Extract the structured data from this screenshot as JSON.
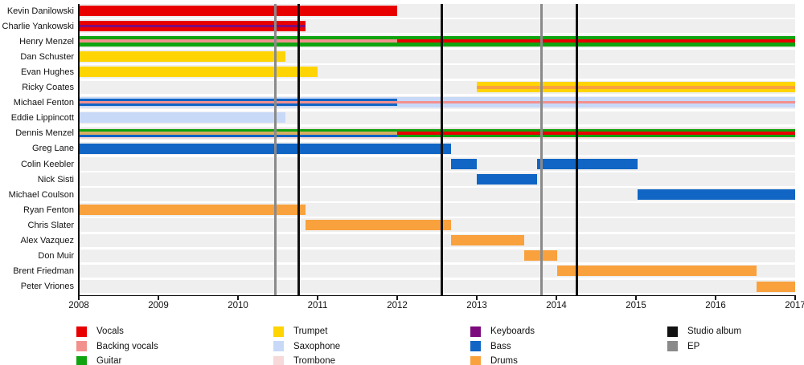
{
  "chart_data": {
    "type": "timeline",
    "description": "Band members timeline (gantt-style) with instrument color coding and release markers",
    "x_axis": {
      "start": 2008,
      "end": 2017,
      "tick_labels": [
        "2008",
        "2009",
        "2010",
        "2011",
        "2012",
        "2013",
        "2014",
        "2015",
        "2016",
        "2017"
      ]
    },
    "colors": {
      "vocals": "#e80000",
      "backing_vocals": "#f2908e",
      "guitar": "#10a310",
      "trumpet": "#ffd403",
      "saxophone": "#c8d9f8",
      "trombone": "#f6d9d8",
      "keyboards": "#7d0b7d",
      "bass": "#1065c5",
      "drums": "#f9a13d",
      "drums_muted": "#d9ae63",
      "studio_album": "#111111",
      "ep": "#8a8a8a"
    },
    "members": [
      {
        "name": "Kevin Danilowski",
        "segments": [
          {
            "start": 2008.0,
            "end": 2012.0,
            "layers": [
              {
                "k": "vocals",
                "w": 1
              }
            ]
          }
        ]
      },
      {
        "name": "Charlie Yankowski",
        "segments": [
          {
            "start": 2008.0,
            "end": 2010.85,
            "layers": [
              {
                "k": "vocals",
                "w": 0.36
              },
              {
                "k": "keyboards",
                "w": 0.28
              },
              {
                "k": "vocals",
                "w": 0.36
              }
            ]
          }
        ]
      },
      {
        "name": "Henry Menzel",
        "segments": [
          {
            "start": 2008.0,
            "end": 2012.0,
            "layers": [
              {
                "k": "guitar",
                "w": 0.35
              },
              {
                "k": "backing_vocals",
                "w": 0.3
              },
              {
                "k": "guitar",
                "w": 0.35
              }
            ]
          },
          {
            "start": 2012.0,
            "end": 2017.0,
            "layers": [
              {
                "k": "guitar",
                "w": 0.35
              },
              {
                "k": "vocals",
                "w": 0.3
              },
              {
                "k": "guitar",
                "w": 0.35
              }
            ]
          }
        ]
      },
      {
        "name": "Dan Schuster",
        "segments": [
          {
            "start": 2008.0,
            "end": 2010.6,
            "layers": [
              {
                "k": "trumpet",
                "w": 1
              }
            ]
          }
        ]
      },
      {
        "name": "Evan Hughes",
        "segments": [
          {
            "start": 2008.0,
            "end": 2011.0,
            "layers": [
              {
                "k": "trumpet",
                "w": 1
              }
            ]
          }
        ]
      },
      {
        "name": "Ricky Coates",
        "segments": [
          {
            "start": 2013.0,
            "end": 2017.0,
            "layers": [
              {
                "k": "trumpet",
                "w": 0.34
              },
              {
                "k": "drums",
                "w": 0.32
              },
              {
                "k": "trumpet",
                "w": 0.34
              }
            ]
          }
        ]
      },
      {
        "name": "Michael Fenton",
        "segments": [
          {
            "start": 2008.0,
            "end": 2012.0,
            "layers": [
              {
                "k": "saxophone",
                "w": 0.16
              },
              {
                "k": "bass",
                "w": 0.22
              },
              {
                "k": "backing_vocals",
                "w": 0.24
              },
              {
                "k": "bass",
                "w": 0.22
              },
              {
                "k": "saxophone",
                "w": 0.16
              }
            ]
          },
          {
            "start": 2012.0,
            "end": 2017.0,
            "layers": [
              {
                "k": "saxophone",
                "w": 0.38
              },
              {
                "k": "backing_vocals",
                "w": 0.24
              },
              {
                "k": "saxophone",
                "w": 0.38
              }
            ]
          }
        ]
      },
      {
        "name": "Eddie Lippincott",
        "segments": [
          {
            "start": 2008.0,
            "end": 2010.6,
            "layers": [
              {
                "k": "saxophone",
                "w": 1
              }
            ]
          }
        ]
      },
      {
        "name": "Dennis Menzel",
        "segments": [
          {
            "start": 2008.0,
            "end": 2012.0,
            "layers": [
              {
                "k": "trombone",
                "w": 0.12
              },
              {
                "k": "guitar",
                "w": 0.24
              },
              {
                "k": "drums_muted",
                "w": 0.26
              },
              {
                "k": "bass",
                "w": 0.24
              },
              {
                "k": "trombone",
                "w": 0.14
              }
            ]
          },
          {
            "start": 2012.0,
            "end": 2017.0,
            "layers": [
              {
                "k": "trombone",
                "w": 0.12
              },
              {
                "k": "guitar",
                "w": 0.26
              },
              {
                "k": "vocals",
                "w": 0.24
              },
              {
                "k": "guitar",
                "w": 0.26
              },
              {
                "k": "trombone",
                "w": 0.12
              }
            ]
          }
        ]
      },
      {
        "name": "Greg Lane",
        "segments": [
          {
            "start": 2008.0,
            "end": 2012.68,
            "layers": [
              {
                "k": "bass",
                "w": 1
              }
            ]
          }
        ]
      },
      {
        "name": "Colin Keebler",
        "segments": [
          {
            "start": 2012.68,
            "end": 2013.0,
            "layers": [
              {
                "k": "bass",
                "w": 1
              }
            ]
          },
          {
            "start": 2013.76,
            "end": 2015.02,
            "layers": [
              {
                "k": "bass",
                "w": 1
              }
            ]
          }
        ]
      },
      {
        "name": "Nick Sisti",
        "segments": [
          {
            "start": 2013.0,
            "end": 2013.76,
            "layers": [
              {
                "k": "bass",
                "w": 1
              }
            ]
          }
        ]
      },
      {
        "name": "Michael Coulson",
        "segments": [
          {
            "start": 2015.02,
            "end": 2017.0,
            "layers": [
              {
                "k": "bass",
                "w": 1
              }
            ]
          }
        ]
      },
      {
        "name": "Ryan Fenton",
        "segments": [
          {
            "start": 2008.0,
            "end": 2010.85,
            "layers": [
              {
                "k": "drums",
                "w": 1
              }
            ]
          }
        ]
      },
      {
        "name": "Chris Slater",
        "segments": [
          {
            "start": 2010.85,
            "end": 2012.68,
            "layers": [
              {
                "k": "drums",
                "w": 1
              }
            ]
          }
        ]
      },
      {
        "name": "Alex Vazquez",
        "segments": [
          {
            "start": 2012.68,
            "end": 2013.6,
            "layers": [
              {
                "k": "drums",
                "w": 1
              }
            ]
          }
        ]
      },
      {
        "name": "Don Muir",
        "segments": [
          {
            "start": 2013.6,
            "end": 2014.01,
            "layers": [
              {
                "k": "drums",
                "w": 1
              }
            ]
          }
        ]
      },
      {
        "name": "Brent Friedman",
        "segments": [
          {
            "start": 2014.01,
            "end": 2016.52,
            "layers": [
              {
                "k": "drums",
                "w": 1
              }
            ]
          }
        ]
      },
      {
        "name": "Peter Vriones",
        "segments": [
          {
            "start": 2016.52,
            "end": 2017.0,
            "layers": [
              {
                "k": "drums",
                "w": 1
              }
            ]
          }
        ]
      }
    ],
    "releases": [
      {
        "type": "ep",
        "year": 2010.47
      },
      {
        "type": "studio_album",
        "year": 2010.76
      },
      {
        "type": "studio_album",
        "year": 2012.56
      },
      {
        "type": "ep",
        "year": 2013.81
      },
      {
        "type": "studio_album",
        "year": 2014.26
      }
    ],
    "legend": {
      "columns": [
        [
          {
            "label": "Vocals",
            "k": "vocals"
          },
          {
            "label": "Backing vocals",
            "k": "backing_vocals"
          },
          {
            "label": "Guitar",
            "k": "guitar"
          }
        ],
        [
          {
            "label": "Trumpet",
            "k": "trumpet"
          },
          {
            "label": "Saxophone",
            "k": "saxophone"
          },
          {
            "label": "Trombone",
            "k": "trombone"
          }
        ],
        [
          {
            "label": "Keyboards",
            "k": "keyboards"
          },
          {
            "label": "Bass",
            "k": "bass"
          },
          {
            "label": "Drums",
            "k": "drums"
          }
        ],
        [
          {
            "label": "Studio album",
            "k": "studio_album"
          },
          {
            "label": "EP",
            "k": "ep"
          }
        ]
      ]
    }
  },
  "layout_hints": {
    "grid": "off",
    "legend_position": "bottom"
  }
}
